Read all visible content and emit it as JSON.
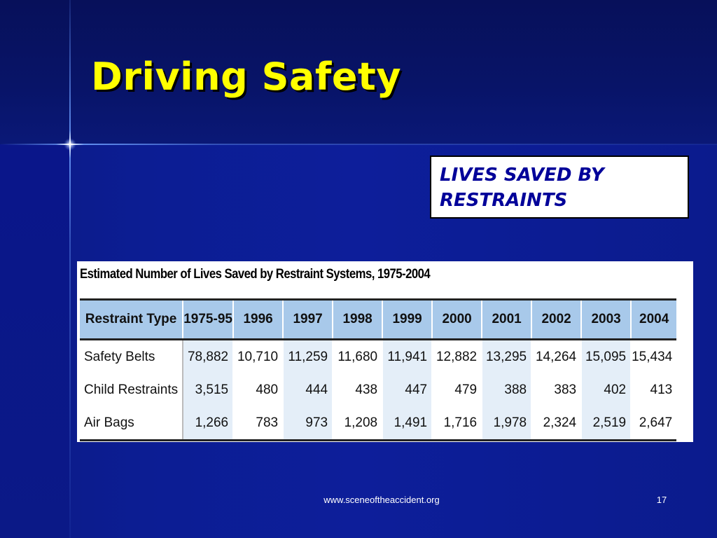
{
  "slide": {
    "title": "Driving Safety",
    "callout": "LIVES SAVED BY RESTRAINTS",
    "footer_url": "www.sceneoftheaccident.org",
    "page_number": "17"
  },
  "table": {
    "caption": "Estimated Number of Lives Saved by Restraint Systems, 1975-2004",
    "headers": [
      "Restraint Type",
      "1975-95",
      "1996",
      "1997",
      "1998",
      "1999",
      "2000",
      "2001",
      "2002",
      "2003",
      "2004"
    ],
    "rows": [
      {
        "label": "Safety Belts",
        "values": [
          "78,882",
          "10,710",
          "11,259",
          "11,680",
          "11,941",
          "12,882",
          "13,295",
          "14,264",
          "15,095",
          "15,434"
        ]
      },
      {
        "label": "Child Restraints",
        "values": [
          "3,515",
          "480",
          "444",
          "438",
          "447",
          "479",
          "388",
          "383",
          "402",
          "413"
        ]
      },
      {
        "label": "Air Bags",
        "values": [
          "1,266",
          "783",
          "973",
          "1,208",
          "1,491",
          "1,716",
          "1,978",
          "2,324",
          "2,519",
          "2,647"
        ]
      }
    ]
  },
  "colors": {
    "background": "#0c1d93",
    "title": "#ffff00",
    "callout_text": "#000099",
    "header_fill": "#a8c9ea",
    "alt_column_fill": "#e4eef8"
  },
  "icons": {
    "sparkle": "sparkle-star-icon"
  }
}
